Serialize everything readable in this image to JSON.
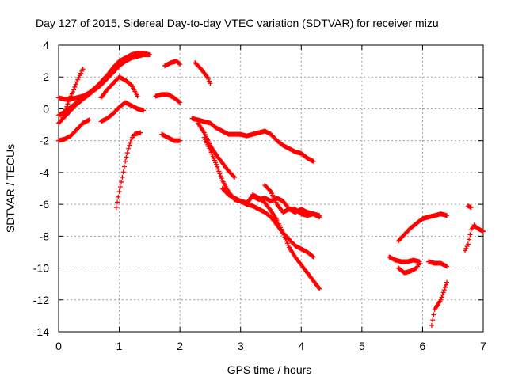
{
  "chart_data": {
    "type": "scatter",
    "title": "Day 127 of 2015, Sidereal Day-to-day VTEC variation (SDTVAR) for receiver mizu",
    "xlabel": "GPS time / hours",
    "ylabel": "SDTVAR / TECUs",
    "xlim": [
      0,
      7
    ],
    "ylim": [
      -14,
      4
    ],
    "xticks": [
      0,
      1,
      2,
      3,
      4,
      5,
      6,
      7
    ],
    "yticks": [
      4,
      2,
      0,
      -2,
      -4,
      -6,
      -8,
      -10,
      -12,
      -14
    ],
    "grid": true,
    "legend": "none",
    "marker": "plus",
    "series_color": "#ff0000",
    "series": [
      {
        "points": [
          [
            0.0,
            0.7
          ],
          [
            0.1,
            0.6
          ],
          [
            0.2,
            0.6
          ],
          [
            0.3,
            0.7
          ],
          [
            0.4,
            0.8
          ],
          [
            0.5,
            1.0
          ],
          [
            0.6,
            1.3
          ],
          [
            0.7,
            1.7
          ],
          [
            0.8,
            2.1
          ],
          [
            0.9,
            2.6
          ],
          [
            1.0,
            3.0
          ],
          [
            1.1,
            3.2
          ],
          [
            1.2,
            3.4
          ],
          [
            1.3,
            3.5
          ],
          [
            1.4,
            3.5
          ],
          [
            1.5,
            3.4
          ]
        ]
      },
      {
        "points": [
          [
            0.0,
            -0.4
          ],
          [
            0.1,
            -0.2
          ],
          [
            0.2,
            0.1
          ],
          [
            0.3,
            0.4
          ],
          [
            0.4,
            0.7
          ],
          [
            0.5,
            1.0
          ],
          [
            0.6,
            1.3
          ],
          [
            0.7,
            1.6
          ],
          [
            0.8,
            1.9
          ],
          [
            0.9,
            2.3
          ],
          [
            1.0,
            2.7
          ],
          [
            1.1,
            3.0
          ],
          [
            1.2,
            3.2
          ],
          [
            1.3,
            3.3
          ],
          [
            1.4,
            3.4
          ],
          [
            1.5,
            3.4
          ]
        ]
      },
      {
        "points": [
          [
            0.0,
            -0.9
          ],
          [
            0.1,
            -0.5
          ],
          [
            0.2,
            -0.1
          ],
          [
            0.3,
            0.3
          ],
          [
            0.4,
            0.6
          ],
          [
            0.5,
            0.9
          ],
          [
            0.6,
            1.2
          ],
          [
            0.7,
            1.5
          ],
          [
            0.8,
            1.9
          ],
          [
            0.9,
            2.3
          ],
          [
            1.0,
            2.7
          ],
          [
            1.1,
            3.0
          ],
          [
            1.2,
            3.2
          ]
        ]
      },
      {
        "points": [
          [
            0.0,
            -2.0
          ],
          [
            0.1,
            -1.9
          ],
          [
            0.2,
            -1.7
          ],
          [
            0.3,
            -1.3
          ],
          [
            0.4,
            -0.9
          ],
          [
            0.5,
            -0.7
          ]
        ]
      },
      {
        "points": [
          [
            0.05,
            -0.7
          ],
          [
            0.1,
            -0.2
          ],
          [
            0.15,
            0.3
          ],
          [
            0.2,
            0.8
          ],
          [
            0.25,
            1.2
          ],
          [
            0.3,
            1.7
          ],
          [
            0.35,
            2.1
          ],
          [
            0.4,
            2.5
          ]
        ]
      },
      {
        "points": [
          [
            0.7,
            -0.8
          ],
          [
            0.8,
            -0.6
          ],
          [
            0.9,
            -0.3
          ],
          [
            1.0,
            0.1
          ],
          [
            1.1,
            0.4
          ],
          [
            1.2,
            0.2
          ],
          [
            1.3,
            0.0
          ],
          [
            1.4,
            -0.1
          ]
        ]
      },
      {
        "points": [
          [
            0.7,
            0.7
          ],
          [
            0.8,
            1.2
          ],
          [
            0.9,
            1.6
          ],
          [
            1.0,
            2.0
          ],
          [
            1.05,
            1.9
          ],
          [
            1.1,
            1.8
          ],
          [
            1.2,
            1.5
          ],
          [
            1.3,
            0.8
          ]
        ]
      },
      {
        "points": [
          [
            0.95,
            -6.2
          ],
          [
            1.0,
            -5.2
          ],
          [
            1.05,
            -4.3
          ],
          [
            1.1,
            -3.3
          ],
          [
            1.15,
            -2.5
          ],
          [
            1.2,
            -1.9
          ],
          [
            1.25,
            -1.6
          ],
          [
            1.35,
            -1.5
          ]
        ]
      },
      {
        "points": [
          [
            1.6,
            0.8
          ],
          [
            1.7,
            0.9
          ],
          [
            1.8,
            0.9
          ],
          [
            1.9,
            0.7
          ],
          [
            2.0,
            0.4
          ]
        ]
      },
      {
        "points": [
          [
            1.7,
            -1.6
          ],
          [
            1.8,
            -1.8
          ],
          [
            1.9,
            -2.0
          ],
          [
            2.0,
            -2.0
          ]
        ]
      },
      {
        "points": [
          [
            1.75,
            2.7
          ],
          [
            1.85,
            2.9
          ],
          [
            1.95,
            3.0
          ],
          [
            2.0,
            2.8
          ]
        ]
      },
      {
        "points": [
          [
            2.25,
            2.9
          ],
          [
            2.35,
            2.5
          ],
          [
            2.45,
            2.0
          ],
          [
            2.5,
            1.6
          ]
        ]
      },
      {
        "points": [
          [
            2.2,
            -0.6
          ],
          [
            2.3,
            -0.7
          ],
          [
            2.4,
            -0.8
          ],
          [
            2.5,
            -0.9
          ],
          [
            2.6,
            -1.2
          ],
          [
            2.7,
            -1.4
          ],
          [
            2.8,
            -1.6
          ],
          [
            2.9,
            -1.6
          ],
          [
            3.0,
            -1.6
          ],
          [
            3.1,
            -1.7
          ],
          [
            3.2,
            -1.6
          ],
          [
            3.3,
            -1.5
          ],
          [
            3.4,
            -1.4
          ],
          [
            3.5,
            -1.6
          ],
          [
            3.6,
            -2.0
          ],
          [
            3.7,
            -2.3
          ],
          [
            3.8,
            -2.5
          ],
          [
            3.9,
            -2.7
          ],
          [
            4.0,
            -2.8
          ],
          [
            4.1,
            -3.1
          ],
          [
            4.2,
            -3.3
          ]
        ]
      },
      {
        "points": [
          [
            2.3,
            -0.9
          ],
          [
            2.4,
            -1.5
          ],
          [
            2.5,
            -2.3
          ],
          [
            2.6,
            -2.9
          ],
          [
            2.7,
            -3.4
          ],
          [
            2.8,
            -3.9
          ],
          [
            2.9,
            -4.3
          ]
        ]
      },
      {
        "points": [
          [
            2.4,
            -1.8
          ],
          [
            2.5,
            -2.6
          ],
          [
            2.6,
            -3.5
          ],
          [
            2.7,
            -4.5
          ],
          [
            2.8,
            -5.2
          ],
          [
            2.9,
            -5.7
          ],
          [
            3.0,
            -5.8
          ],
          [
            3.1,
            -5.9
          ],
          [
            3.2,
            -5.5
          ],
          [
            3.3,
            -5.7
          ],
          [
            3.4,
            -5.6
          ],
          [
            3.5,
            -5.8
          ],
          [
            3.6,
            -5.6
          ],
          [
            3.7,
            -5.8
          ],
          [
            3.8,
            -6.3
          ],
          [
            3.9,
            -6.5
          ],
          [
            4.0,
            -6.3
          ],
          [
            4.1,
            -6.5
          ],
          [
            4.2,
            -6.6
          ],
          [
            4.3,
            -6.7
          ]
        ]
      },
      {
        "points": [
          [
            2.7,
            -5.0
          ],
          [
            2.8,
            -5.4
          ],
          [
            2.9,
            -5.6
          ],
          [
            3.0,
            -5.8
          ],
          [
            3.1,
            -6.0
          ],
          [
            3.2,
            -6.1
          ],
          [
            3.3,
            -6.3
          ],
          [
            3.4,
            -6.5
          ],
          [
            3.5,
            -6.8
          ],
          [
            3.6,
            -7.3
          ],
          [
            3.7,
            -7.8
          ],
          [
            3.8,
            -8.2
          ],
          [
            3.9,
            -8.6
          ],
          [
            4.0,
            -8.8
          ],
          [
            4.1,
            -9.0
          ],
          [
            4.2,
            -9.3
          ]
        ]
      },
      {
        "points": [
          [
            3.1,
            -6.0
          ],
          [
            3.2,
            -5.4
          ],
          [
            3.3,
            -5.6
          ],
          [
            3.4,
            -5.9
          ],
          [
            3.5,
            -6.4
          ],
          [
            3.6,
            -7.0
          ],
          [
            3.7,
            -7.8
          ],
          [
            3.8,
            -8.7
          ],
          [
            3.9,
            -9.3
          ],
          [
            4.0,
            -9.8
          ],
          [
            4.1,
            -10.3
          ],
          [
            4.2,
            -10.8
          ],
          [
            4.3,
            -11.3
          ]
        ]
      },
      {
        "points": [
          [
            3.4,
            -4.8
          ],
          [
            3.5,
            -5.2
          ],
          [
            3.6,
            -6.0
          ],
          [
            3.7,
            -6.5
          ],
          [
            3.8,
            -6.3
          ],
          [
            3.9,
            -6.3
          ],
          [
            4.0,
            -6.6
          ],
          [
            4.1,
            -6.7
          ],
          [
            4.2,
            -6.6
          ],
          [
            4.3,
            -6.8
          ]
        ]
      },
      {
        "points": [
          [
            5.45,
            -9.3
          ],
          [
            5.55,
            -9.5
          ],
          [
            5.65,
            -9.6
          ],
          [
            5.75,
            -9.6
          ],
          [
            5.85,
            -9.5
          ],
          [
            5.95,
            -9.6
          ]
        ]
      },
      {
        "points": [
          [
            5.6,
            -10.0
          ],
          [
            5.7,
            -10.3
          ],
          [
            5.8,
            -10.2
          ],
          [
            5.9,
            -10.0
          ],
          [
            5.95,
            -9.7
          ]
        ]
      },
      {
        "points": [
          [
            5.6,
            -8.3
          ],
          [
            5.7,
            -7.9
          ],
          [
            5.8,
            -7.5
          ],
          [
            5.9,
            -7.2
          ],
          [
            6.0,
            -6.9
          ],
          [
            6.1,
            -6.8
          ],
          [
            6.2,
            -6.7
          ],
          [
            6.3,
            -6.6
          ],
          [
            6.4,
            -6.7
          ]
        ]
      },
      {
        "points": [
          [
            6.15,
            -13.6
          ],
          [
            6.2,
            -12.6
          ],
          [
            6.3,
            -12.0
          ],
          [
            6.4,
            -10.9
          ]
        ]
      },
      {
        "points": [
          [
            6.1,
            -9.6
          ],
          [
            6.2,
            -9.7
          ],
          [
            6.3,
            -9.7
          ],
          [
            6.4,
            -9.9
          ]
        ]
      },
      {
        "points": [
          [
            6.7,
            -8.9
          ],
          [
            6.75,
            -8.5
          ],
          [
            6.8,
            -7.6
          ],
          [
            6.85,
            -7.3
          ],
          [
            6.9,
            -7.5
          ],
          [
            7.0,
            -7.7
          ]
        ]
      },
      {
        "points": [
          [
            6.75,
            -6.1
          ],
          [
            6.8,
            -6.2
          ]
        ]
      }
    ]
  }
}
